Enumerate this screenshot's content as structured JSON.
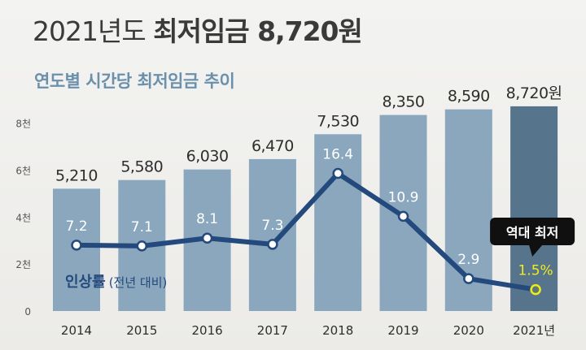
{
  "title": {
    "prefix": "2021년도",
    "main": "최저임금 8,720원"
  },
  "subtitle": "연도별 시간당 최저임금 추이",
  "colors": {
    "bar": "#8aa7bd",
    "bar_highlight": "#56758d",
    "line": "#24497d",
    "rate_label_highlight": "#f2ea1c",
    "callout_bg": "#101010",
    "text": "#2e2e2e"
  },
  "chart_data": [
    {
      "type": "bar",
      "categories": [
        "2014",
        "2015",
        "2016",
        "2017",
        "2018",
        "2019",
        "2020",
        "2021년"
      ],
      "values": [
        5210,
        5580,
        6030,
        6470,
        7530,
        8350,
        8590,
        8720
      ],
      "value_labels": [
        "5,210",
        "5,580",
        "6,030",
        "6,470",
        "7,530",
        "8,350",
        "8,590",
        "8,720원"
      ],
      "yticks": [
        {
          "value": 0,
          "label": "0"
        },
        {
          "value": 2000,
          "label": "2천"
        },
        {
          "value": 4000,
          "label": "4천"
        },
        {
          "value": 6000,
          "label": "6천"
        },
        {
          "value": 8000,
          "label": "8천"
        }
      ],
      "ylim": [
        0,
        8800
      ],
      "highlight_index": 7
    },
    {
      "type": "line",
      "name": "인상률 (전년 대비)",
      "name_main": "인상률",
      "name_note": "(전년 대비)",
      "categories": [
        "2014",
        "2015",
        "2016",
        "2017",
        "2018",
        "2019",
        "2020",
        "2021년"
      ],
      "values": [
        7.2,
        7.1,
        8.1,
        7.3,
        16.4,
        10.9,
        2.9,
        1.5
      ],
      "value_labels": [
        "7.2",
        "7.1",
        "8.1",
        "7.3",
        "16.4",
        "10.9",
        "2.9",
        "1.5%"
      ],
      "highlight_index": 7,
      "annotation": "역대 최저"
    }
  ]
}
